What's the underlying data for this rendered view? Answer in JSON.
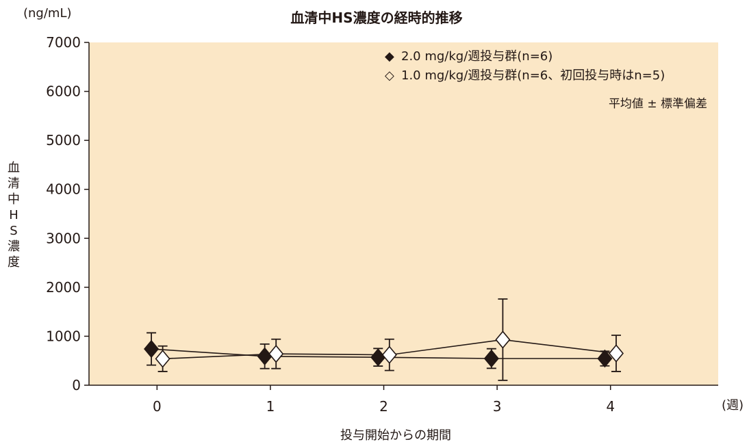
{
  "chart_data": {
    "type": "line",
    "title": "血清中HS濃度の経時的推移",
    "y_unit": "(ng/mL)",
    "ylabel": "血清中HS濃度",
    "xlabel": "投与開始からの期間",
    "x_unit": "(週)",
    "x": [
      0,
      1,
      2,
      3,
      4
    ],
    "xlim": [
      -0.6,
      4.95
    ],
    "ylim": [
      0,
      7000
    ],
    "yticks": [
      0,
      1000,
      2000,
      3000,
      4000,
      5000,
      6000,
      7000
    ],
    "xticks": [
      0,
      1,
      2,
      3,
      4
    ],
    "note": "平均値 ± 標準偏差",
    "legend_position": "top-right",
    "background_color": "#fbe7c6",
    "line_color": "#231815",
    "series": [
      {
        "name": "2.0 mg/kg/週投与群(n=6)",
        "legend_symbol": "◆",
        "marker": "filled-diamond",
        "values": [
          740,
          590,
          570,
          545,
          545
        ],
        "errors": [
          330,
          250,
          180,
          200,
          150
        ]
      },
      {
        "name": "1.0 mg/kg/週投与群(n=6、初回投与時はn=5)",
        "legend_symbol": "◇",
        "marker": "open-diamond",
        "values": [
          540,
          640,
          620,
          930,
          650
        ],
        "errors": [
          260,
          300,
          320,
          830,
          370
        ]
      }
    ]
  }
}
